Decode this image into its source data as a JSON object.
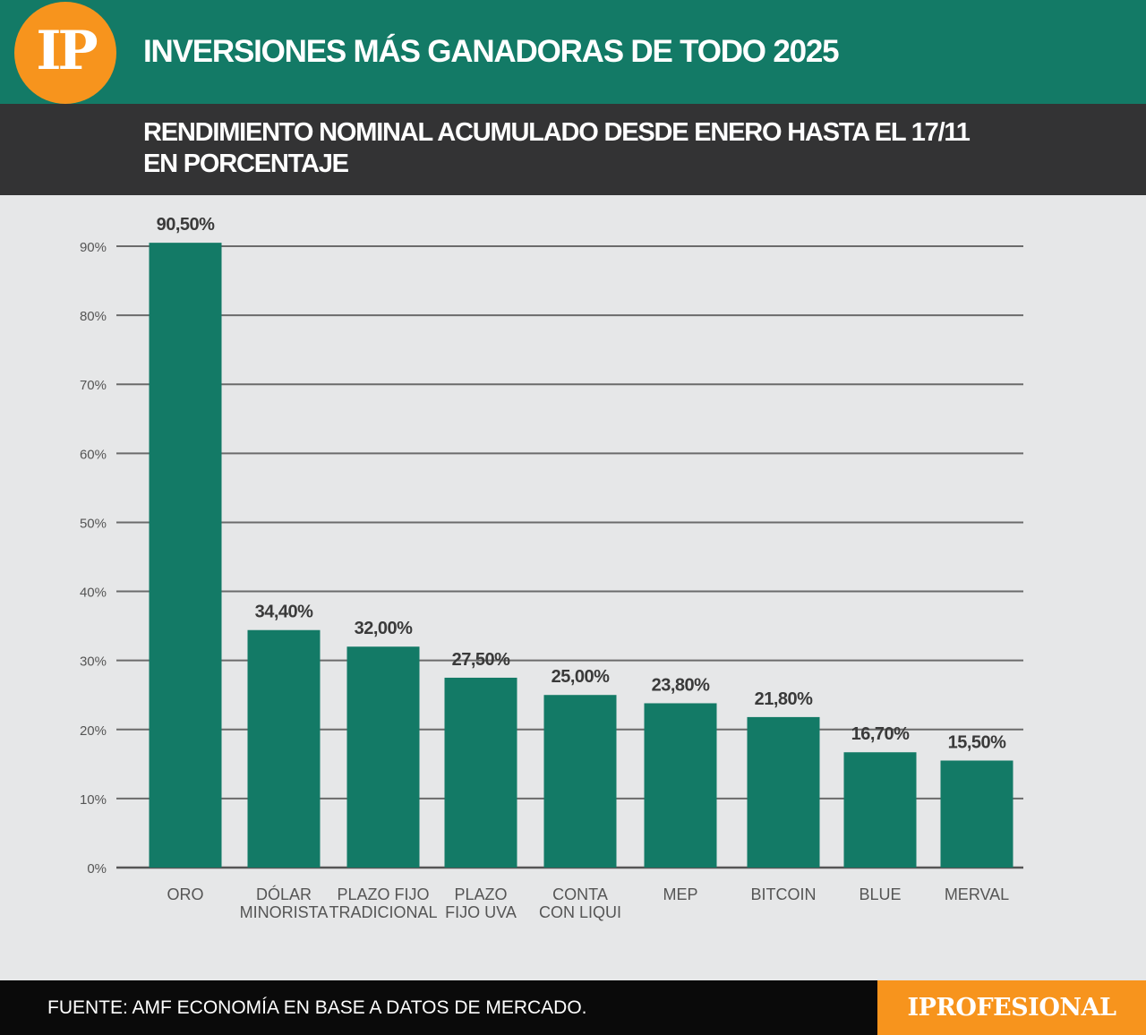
{
  "header": {
    "logo_text": "IP",
    "title": "INVERSIONES MÁS GANADORAS DE TODO 2025",
    "subtitle_line1": "RENDIMIENTO NOMINAL ACUMULADO DESDE ENERO HASTA EL 17/11",
    "subtitle_line2": "EN PORCENTAJE"
  },
  "footer": {
    "source": "FUENTE: AMF ECONOMÍA EN BASE A DATOS DE MERCADO.",
    "brand": "IPROFESIONAL"
  },
  "colors": {
    "bar": "#137a66",
    "header": "#137a66",
    "accent": "#f7941d",
    "subheader": "#333334",
    "background": "#e6e7e8"
  },
  "chart_data": {
    "type": "bar",
    "categories": [
      [
        "ORO"
      ],
      [
        "DÓLAR",
        "MINORISTA"
      ],
      [
        "PLAZO FIJO",
        "TRADICIONAL"
      ],
      [
        "PLAZO",
        "FIJO UVA"
      ],
      [
        "CONTA",
        "CON LIQUI"
      ],
      [
        "MEP"
      ],
      [
        "BITCOIN"
      ],
      [
        "BLUE"
      ],
      [
        "MERVAL"
      ]
    ],
    "values": [
      90.5,
      34.4,
      32.0,
      27.5,
      25.0,
      23.8,
      21.8,
      16.7,
      15.5
    ],
    "value_labels": [
      "90,50%",
      "34,40%",
      "32,00%",
      "27,50%",
      "25,00%",
      "23,80%",
      "21,80%",
      "16,70%",
      "15,50%"
    ],
    "y_ticks": [
      0,
      10,
      20,
      30,
      40,
      50,
      60,
      70,
      80,
      90
    ],
    "y_tick_labels": [
      "0%",
      "10%",
      "20%",
      "30%",
      "40%",
      "50%",
      "60%",
      "70%",
      "80%",
      "90%"
    ],
    "ylim": [
      0,
      90
    ],
    "grid": true,
    "legend": false
  }
}
